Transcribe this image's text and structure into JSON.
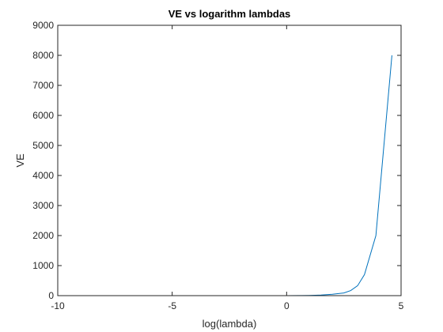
{
  "chart_data": {
    "type": "line",
    "title": "VE vs logarithm lambdas",
    "xlabel": "log(lambda)",
    "ylabel": "VE",
    "xlim": [
      -10,
      5
    ],
    "ylim": [
      0,
      9000
    ],
    "xticks": [
      -10,
      -5,
      0,
      5
    ],
    "yticks": [
      0,
      1000,
      2000,
      3000,
      4000,
      5000,
      6000,
      7000,
      8000,
      9000
    ],
    "grid": false,
    "series": [
      {
        "color": "#0072BD",
        "x": [
          -9.21,
          -8.0,
          -6.0,
          -4.0,
          -2.0,
          0.0,
          0.5,
          1.0,
          1.5,
          2.0,
          2.5,
          2.8,
          3.1,
          3.4,
          3.9,
          4.6
        ],
        "y": [
          0,
          0,
          0,
          0,
          0,
          1,
          3,
          8,
          20,
          45,
          90,
          170,
          330,
          700,
          2000,
          8000
        ]
      }
    ]
  }
}
